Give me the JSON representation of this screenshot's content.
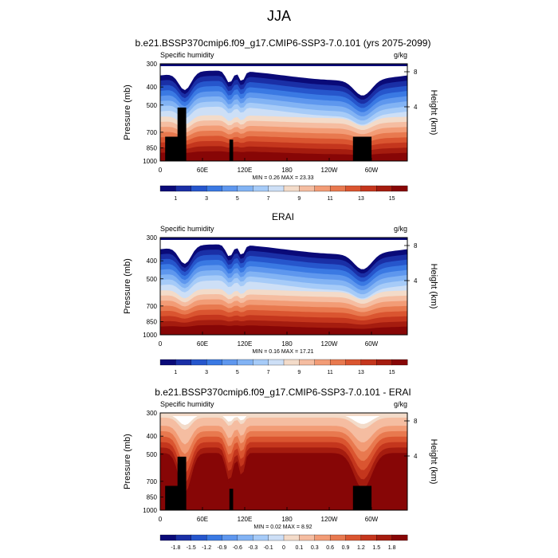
{
  "page": {
    "title": "JJA"
  },
  "colors": {
    "blue_red_16": [
      "#0a0a78",
      "#1a2fa6",
      "#2656cc",
      "#3a79e3",
      "#5e97ee",
      "#82b3f4",
      "#a6cbf8",
      "#cddff6",
      "#f3dbc9",
      "#f5bda1",
      "#f29c76",
      "#e8794f",
      "#da5530",
      "#c4361d",
      "#a51c0f",
      "#870606"
    ],
    "nodata": "#000000",
    "fill_top": "#f3dbc9"
  },
  "chart_data": [
    {
      "type": "heatmap",
      "title": "b.e21.BSSP370cmip6.f09_g17.CMIP6-SSP3-7.0.101 (yrs 2075-2099)",
      "left_label": "Specific humidity",
      "right_label": "g/kg",
      "ylabel": "Pressure (mb)",
      "y2label": "Height (km)",
      "y_ticks": [
        "300",
        "400",
        "500",
        "700",
        "850",
        "1000"
      ],
      "y2_ticks": [
        "8",
        "4"
      ],
      "x_ticks": [
        "0",
        "60E",
        "120E",
        "180",
        "120W",
        "60W"
      ],
      "stats": "MIN =   0.26  MAX =  23.33",
      "colorbar_labels": [
        "1",
        "3",
        "5",
        "7",
        "9",
        "11",
        "13",
        "15"
      ]
    },
    {
      "type": "heatmap",
      "title": "ERAI",
      "left_label": "Specific humidity",
      "right_label": "g/kg",
      "ylabel": "Pressure (mb)",
      "y2label": "Height (km)",
      "y_ticks": [
        "300",
        "400",
        "500",
        "700",
        "850",
        "1000"
      ],
      "y2_ticks": [
        "8",
        "4"
      ],
      "x_ticks": [
        "0",
        "60E",
        "120E",
        "180",
        "120W",
        "60W"
      ],
      "stats": "MIN =   0.16  MAX =  17.21",
      "colorbar_labels": [
        "1",
        "3",
        "5",
        "7",
        "9",
        "11",
        "13",
        "15"
      ]
    },
    {
      "type": "heatmap",
      "title": "b.e21.BSSP370cmip6.f09_g17.CMIP6-SSP3-7.0.101 - ERAI",
      "left_label": "Specific humidity",
      "right_label": "g/kg",
      "ylabel": "Pressure (mb)",
      "y2label": "Height (km)",
      "y_ticks": [
        "300",
        "400",
        "500",
        "700",
        "850",
        "1000"
      ],
      "y2_ticks": [
        "8",
        "4"
      ],
      "x_ticks": [
        "0",
        "60E",
        "120E",
        "180",
        "120W",
        "60W"
      ],
      "stats": "MIN =   0.02  MAX =   8.92",
      "colorbar_labels": [
        "-1.8",
        "-1.5",
        "-1.2",
        "-0.9",
        "-0.6",
        "-0.3",
        "-0.1",
        "0",
        "0.1",
        "0.3",
        "0.6",
        "0.9",
        "1.2",
        "1.5",
        "1.8"
      ]
    }
  ]
}
